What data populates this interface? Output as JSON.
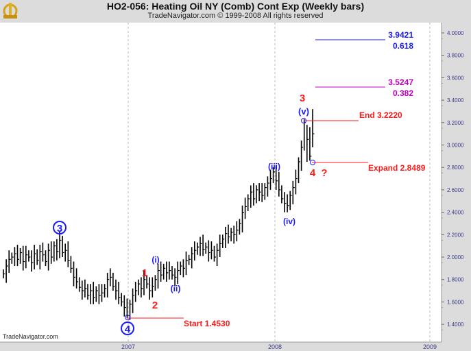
{
  "header": {
    "title": "HO2-056:  Heating Oil NY (Comb) Cont Exp  (Weekly bars)",
    "subtitle": "TradeNavigator.com © 1999-2008 All rights reserved",
    "watermark": "TradeNavigator.com"
  },
  "chart_data": {
    "type": "ohlc",
    "title": "HO2-056: Heating Oil NY (Comb) Cont Exp (Weekly bars)",
    "ylim": [
      1.3,
      4.1
    ],
    "y_ticks": [
      "1.4000",
      "1.6000",
      "1.8000",
      "2.0000",
      "2.2000",
      "2.4000",
      "2.6000",
      "2.8000",
      "3.0000",
      "3.2000",
      "3.4000",
      "3.6000",
      "3.8000",
      "4.0000"
    ],
    "x_ticks": [
      "2007",
      "2008",
      "2009"
    ],
    "closes": [
      1.85,
      1.92,
      1.98,
      2.0,
      2.03,
      1.98,
      2.04,
      1.96,
      2.02,
      2.0,
      1.95,
      2.03,
      1.97,
      2.05,
      2.02,
      1.96,
      2.06,
      2.0,
      2.1,
      2.05,
      2.15,
      2.04,
      2.06,
      1.97,
      1.9,
      1.82,
      1.78,
      1.73,
      1.7,
      1.72,
      1.66,
      1.7,
      1.64,
      1.7,
      1.66,
      1.68,
      1.72,
      1.8,
      1.82,
      1.74,
      1.7,
      1.64,
      1.6,
      1.55,
      1.48,
      1.58,
      1.66,
      1.7,
      1.76,
      1.72,
      1.8,
      1.76,
      1.7,
      1.74,
      1.8,
      1.88,
      1.84,
      1.9,
      1.86,
      1.88,
      1.84,
      1.82,
      1.88,
      1.92,
      1.9,
      1.97,
      1.98,
      2.03,
      2.06,
      2.09,
      2.12,
      2.07,
      2.09,
      2.04,
      2.06,
      2.0,
      2.06,
      2.12,
      2.16,
      2.21,
      2.18,
      2.22,
      2.2,
      2.24,
      2.3,
      2.4,
      2.45,
      2.52,
      2.58,
      2.52,
      2.6,
      2.58,
      2.55,
      2.62,
      2.66,
      2.7,
      2.76,
      2.68,
      2.6,
      2.52,
      2.48,
      2.46,
      2.55,
      2.62,
      2.7,
      2.85,
      2.98,
      3.2,
      3.05,
      2.9,
      3.1
    ],
    "annotations": {
      "wave3_major": "3",
      "wave4_major": "4",
      "w1": "1",
      "w2": "2",
      "w3": "3",
      "w4": "4",
      "q": "?",
      "wi": "(i)",
      "wii": "(ii)",
      "wiii": "(iii)",
      "wiv": "(iv)",
      "wv": "(v)",
      "start": "Start 1.4530",
      "end": "End 3.2220",
      "expand": "Expand 2.8489",
      "fib618_price": "3.9421",
      "fib618_ratio": "0.618",
      "fib382_price": "3.5247",
      "fib382_ratio": "0.382"
    },
    "levels": {
      "start": 1.453,
      "end": 3.222,
      "expand": 2.8489,
      "fib618": 3.9421,
      "fib382": 3.5247
    }
  },
  "colors": {
    "red": "#ff1a1a",
    "blue": "#1a1aff",
    "magenta": "#c000c0",
    "bars": "#000000",
    "axis": "#3a3a8a"
  }
}
